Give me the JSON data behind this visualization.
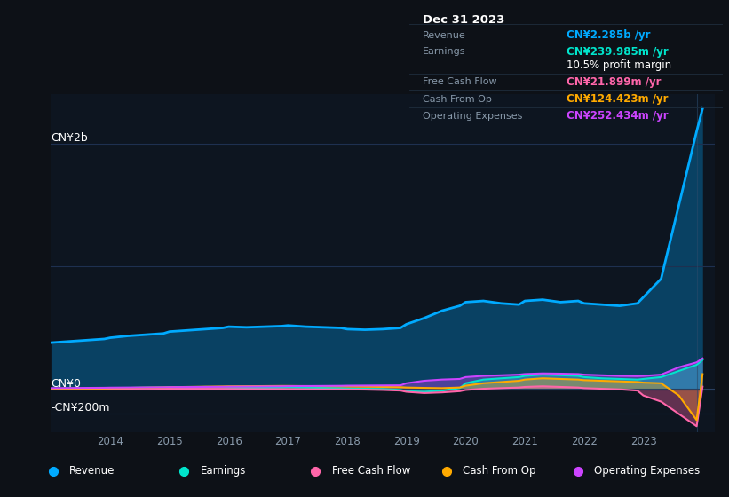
{
  "bg_color": "#0d1117",
  "plot_bg_color": "#0d1520",
  "grid_color": "#1e2d3d",
  "title_box": {
    "date": "Dec 31 2023",
    "rows": [
      {
        "label": "Revenue",
        "value": "CN¥2.285b /yr",
        "value_color": "#00aaff"
      },
      {
        "label": "Earnings",
        "value": "CN¥239.985m /yr",
        "value_color": "#00e5cc"
      },
      {
        "label": "",
        "value": "10.5% profit margin",
        "value_color": "#ffffff"
      },
      {
        "label": "Free Cash Flow",
        "value": "CN¥21.899m /yr",
        "value_color": "#ff66aa"
      },
      {
        "label": "Cash From Op",
        "value": "CN¥124.423m /yr",
        "value_color": "#ffaa00"
      },
      {
        "label": "Operating Expenses",
        "value": "CN¥252.434m /yr",
        "value_color": "#cc44ff"
      }
    ]
  },
  "ylabel_top": "CN¥2b",
  "ylabel_zero": "CN¥0",
  "ylabel_neg": "-CN¥200m",
  "legend": [
    {
      "label": "Revenue",
      "color": "#00aaff"
    },
    {
      "label": "Earnings",
      "color": "#00e5cc"
    },
    {
      "label": "Free Cash Flow",
      "color": "#ff66aa"
    },
    {
      "label": "Cash From Op",
      "color": "#ffaa00"
    },
    {
      "label": "Operating Expenses",
      "color": "#cc44ff"
    }
  ],
  "x_ticks": [
    2014,
    2015,
    2016,
    2017,
    2018,
    2019,
    2020,
    2021,
    2022,
    2023
  ],
  "x_range": [
    2013.0,
    2024.2
  ],
  "y_range": [
    -350000000,
    2400000000
  ],
  "series": {
    "years": [
      2013.0,
      2013.3,
      2013.6,
      2013.9,
      2014.0,
      2014.3,
      2014.6,
      2014.9,
      2015.0,
      2015.3,
      2015.6,
      2015.9,
      2016.0,
      2016.3,
      2016.6,
      2016.9,
      2017.0,
      2017.3,
      2017.6,
      2017.9,
      2018.0,
      2018.3,
      2018.6,
      2018.9,
      2019.0,
      2019.3,
      2019.6,
      2019.9,
      2020.0,
      2020.3,
      2020.6,
      2020.9,
      2021.0,
      2021.3,
      2021.6,
      2021.9,
      2022.0,
      2022.3,
      2022.6,
      2022.9,
      2023.0,
      2023.3,
      2023.6,
      2023.9,
      2024.0
    ],
    "revenue": [
      380000000,
      390000000,
      400000000,
      410000000,
      420000000,
      435000000,
      445000000,
      455000000,
      470000000,
      480000000,
      490000000,
      500000000,
      510000000,
      505000000,
      510000000,
      515000000,
      520000000,
      510000000,
      505000000,
      500000000,
      490000000,
      485000000,
      490000000,
      500000000,
      530000000,
      580000000,
      640000000,
      680000000,
      710000000,
      720000000,
      700000000,
      690000000,
      720000000,
      730000000,
      710000000,
      720000000,
      700000000,
      690000000,
      680000000,
      700000000,
      750000000,
      900000000,
      1500000000,
      2100000000,
      2285000000
    ],
    "earnings": [
      5000000,
      6000000,
      7000000,
      8000000,
      10000000,
      12000000,
      14000000,
      15000000,
      16000000,
      18000000,
      20000000,
      18000000,
      15000000,
      13000000,
      14000000,
      16000000,
      18000000,
      15000000,
      12000000,
      10000000,
      8000000,
      5000000,
      3000000,
      -5000000,
      -15000000,
      -20000000,
      -10000000,
      10000000,
      50000000,
      80000000,
      90000000,
      100000000,
      110000000,
      120000000,
      115000000,
      110000000,
      100000000,
      90000000,
      85000000,
      80000000,
      85000000,
      100000000,
      150000000,
      200000000,
      239985000
    ],
    "free_cash_flow": [
      3000000,
      3500000,
      4000000,
      4500000,
      5000000,
      5500000,
      6000000,
      5500000,
      5000000,
      4500000,
      4000000,
      3500000,
      3000000,
      2500000,
      2000000,
      1500000,
      1000000,
      500000,
      0,
      -500000,
      -1000000,
      -2000000,
      -5000000,
      -10000000,
      -20000000,
      -30000000,
      -25000000,
      -15000000,
      -5000000,
      5000000,
      10000000,
      15000000,
      20000000,
      25000000,
      20000000,
      15000000,
      10000000,
      5000000,
      0,
      -10000000,
      -50000000,
      -100000000,
      -200000000,
      -300000000,
      21899000
    ],
    "cash_from_op": [
      5000000,
      6000000,
      7000000,
      8000000,
      10000000,
      12000000,
      14000000,
      16000000,
      18000000,
      20000000,
      22000000,
      24000000,
      25000000,
      26000000,
      27000000,
      28000000,
      28000000,
      27000000,
      26000000,
      25000000,
      24000000,
      22000000,
      20000000,
      18000000,
      15000000,
      12000000,
      10000000,
      15000000,
      30000000,
      50000000,
      60000000,
      70000000,
      80000000,
      90000000,
      85000000,
      80000000,
      75000000,
      70000000,
      65000000,
      60000000,
      55000000,
      50000000,
      -50000000,
      -250000000,
      124423000
    ],
    "operating_expenses": [
      10000000,
      11000000,
      12000000,
      13000000,
      14000000,
      15000000,
      16000000,
      17000000,
      18000000,
      19000000,
      20000000,
      21000000,
      22000000,
      23000000,
      24000000,
      25000000,
      26000000,
      27000000,
      28000000,
      29000000,
      30000000,
      31000000,
      32000000,
      33000000,
      50000000,
      70000000,
      80000000,
      85000000,
      100000000,
      110000000,
      115000000,
      120000000,
      125000000,
      130000000,
      128000000,
      125000000,
      120000000,
      115000000,
      110000000,
      108000000,
      110000000,
      120000000,
      180000000,
      220000000,
      252434000
    ]
  }
}
